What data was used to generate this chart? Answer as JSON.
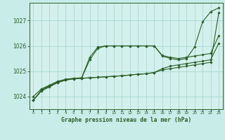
{
  "title": "Graphe pression niveau de la mer (hPa)",
  "x_ticks": [
    0,
    1,
    2,
    3,
    4,
    5,
    6,
    7,
    8,
    9,
    10,
    11,
    12,
    13,
    14,
    15,
    16,
    17,
    18,
    19,
    20,
    21,
    22,
    23
  ],
  "ylim": [
    1023.5,
    1027.7
  ],
  "yticks": [
    1024,
    1025,
    1026,
    1027
  ],
  "xlim": [
    -0.5,
    23.5
  ],
  "background_color": "#c8ece8",
  "plot_bg_color": "#d4f0ec",
  "grid_color": "#a8d8d0",
  "line_color": "#2a5e28",
  "line1": [
    1023.85,
    1024.25,
    1024.4,
    1024.55,
    1024.65,
    1024.7,
    1024.72,
    1024.74,
    1024.76,
    1024.78,
    1024.8,
    1024.82,
    1024.85,
    1024.88,
    1024.9,
    1024.95,
    1025.05,
    1025.1,
    1025.15,
    1025.2,
    1025.25,
    1025.3,
    1025.35,
    1027.3
  ],
  "line2": [
    1024.0,
    1024.3,
    1024.45,
    1024.6,
    1024.68,
    1024.72,
    1024.74,
    1025.55,
    1025.95,
    1026.0,
    1026.0,
    1026.0,
    1026.0,
    1026.0,
    1026.0,
    1026.0,
    1025.6,
    1025.5,
    1025.45,
    1025.5,
    1025.95,
    1026.95,
    1027.35,
    1027.5
  ],
  "line3": [
    1023.85,
    1024.22,
    1024.38,
    1024.55,
    1024.65,
    1024.7,
    1024.72,
    1024.74,
    1024.76,
    1024.78,
    1024.8,
    1024.82,
    1024.85,
    1024.88,
    1024.9,
    1024.95,
    1025.1,
    1025.2,
    1025.25,
    1025.3,
    1025.35,
    1025.4,
    1025.45,
    1026.1
  ],
  "line4": [
    1023.85,
    1024.25,
    1024.42,
    1024.58,
    1024.67,
    1024.71,
    1024.73,
    1025.45,
    1025.9,
    1026.0,
    1026.0,
    1026.0,
    1026.0,
    1026.0,
    1026.0,
    1026.0,
    1025.62,
    1025.55,
    1025.5,
    1025.55,
    1025.6,
    1025.65,
    1025.7,
    1026.4
  ]
}
